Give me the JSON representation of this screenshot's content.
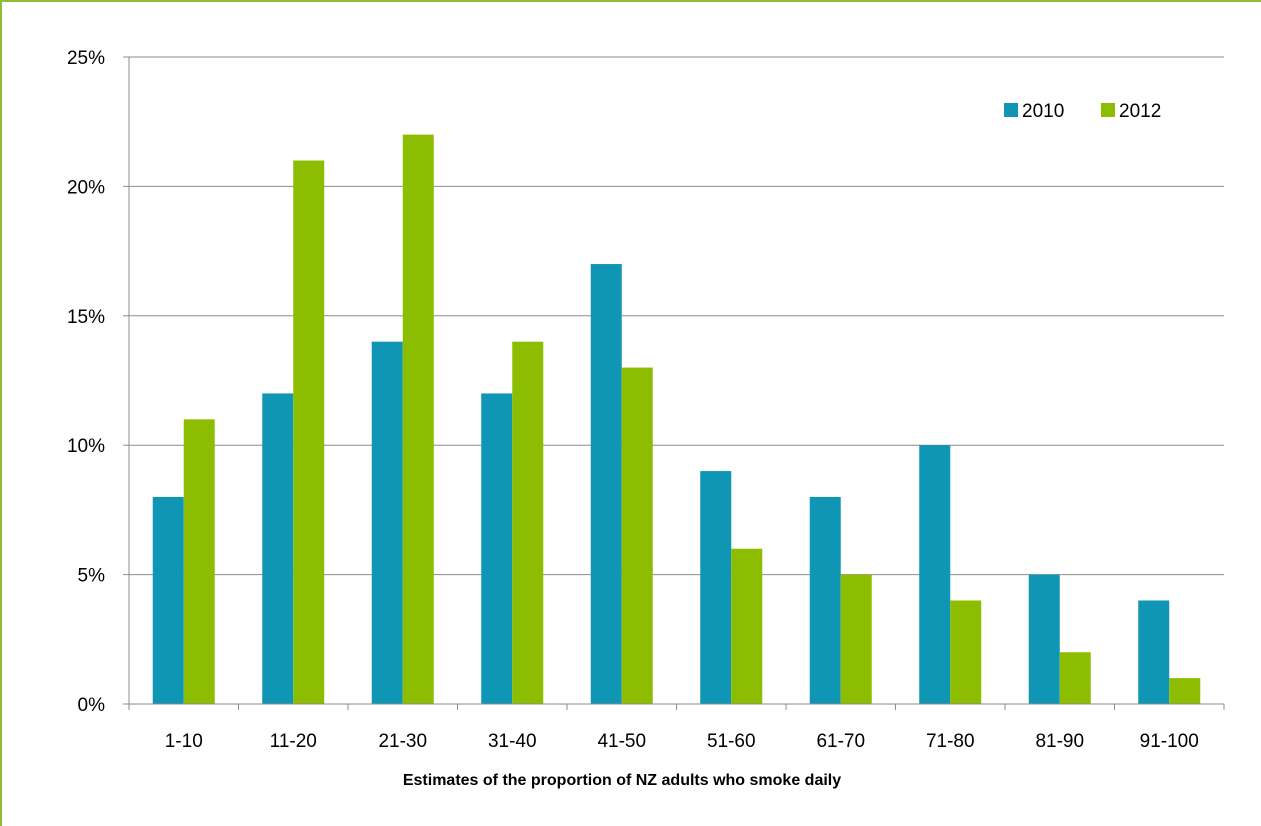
{
  "chart_data": {
    "type": "bar",
    "categories": [
      "1-10",
      "11-20",
      "21-30",
      "31-40",
      "41-50",
      "51-60",
      "61-70",
      "71-80",
      "81-90",
      "91-100"
    ],
    "series": [
      {
        "name": "2010",
        "color": "#0e96b4",
        "values": [
          8,
          12,
          14,
          12,
          17,
          9,
          8,
          10,
          5,
          4
        ]
      },
      {
        "name": "2012",
        "color": "#8dbd00",
        "values": [
          11,
          21,
          22,
          14,
          13,
          6,
          5,
          4,
          2,
          1
        ]
      }
    ],
    "xlabel": "Estimates of the proportion of NZ adults who smoke daily",
    "ylabel": "",
    "ylim": [
      0,
      25
    ],
    "y_ticks": [
      "0%",
      "5%",
      "10%",
      "15%",
      "20%",
      "25%"
    ],
    "y_tick_values": [
      0,
      5,
      10,
      15,
      20,
      25
    ],
    "grid": true,
    "legend_position": "top-right"
  }
}
